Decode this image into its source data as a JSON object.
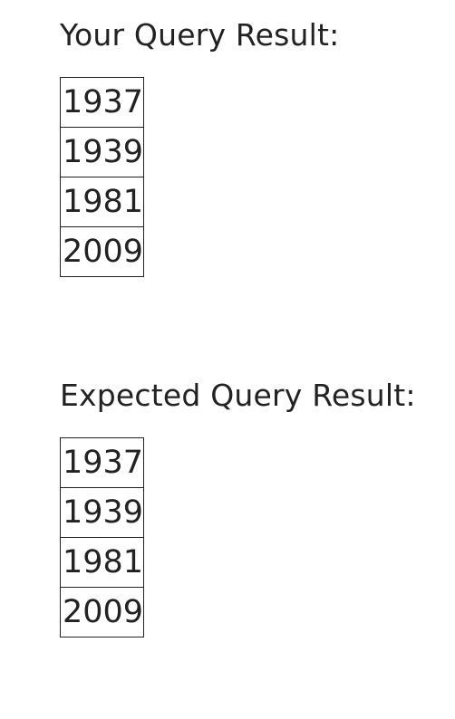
{
  "your_result": {
    "title": "Your Query Result:",
    "rows": [
      "1937",
      "1939",
      "1981",
      "2009"
    ]
  },
  "expected_result": {
    "title": "Expected Query Result:",
    "rows": [
      "1937",
      "1939",
      "1981",
      "2009"
    ]
  }
}
